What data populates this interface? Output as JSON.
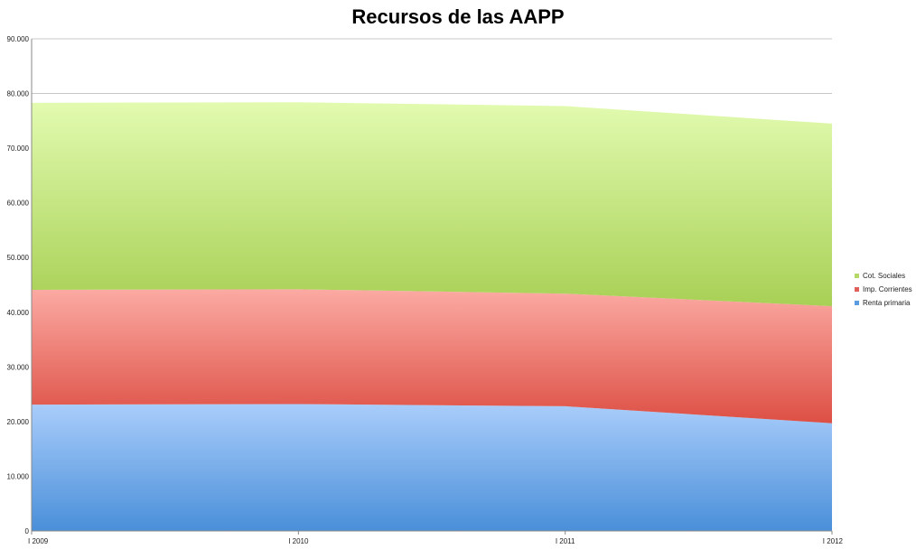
{
  "chart_data": {
    "type": "area",
    "title": "Recursos de las AAPP",
    "xlabel": "",
    "ylabel": "",
    "categories": [
      "I 2009",
      "I 2010",
      "I 2011",
      "I 2012"
    ],
    "ylim": [
      0,
      90000
    ],
    "yticks": [
      "0",
      "10.000",
      "20.000",
      "30.000",
      "40.000",
      "50.000",
      "60.000",
      "70.000",
      "80.000",
      "90.000"
    ],
    "stacked": true,
    "grid": true,
    "legend_position": "right",
    "series": [
      {
        "name": "Renta primaria",
        "values": [
          23100,
          23200,
          22800,
          19700
        ],
        "color": "#5b9bdf"
      },
      {
        "name": "Imp. Corrientes",
        "values": [
          21000,
          21000,
          20600,
          21400
        ],
        "color": "#e06058"
      },
      {
        "name": "Cot. Sociales",
        "values": [
          34200,
          34200,
          34300,
          33400
        ],
        "color": "#b5d866"
      }
    ],
    "legend": [
      {
        "label": "Cot. Sociales",
        "color": "#b5d866"
      },
      {
        "label": "Imp. Corrientes",
        "color": "#e06058"
      },
      {
        "label": "Renta primaria",
        "color": "#5b9bdf"
      }
    ]
  }
}
